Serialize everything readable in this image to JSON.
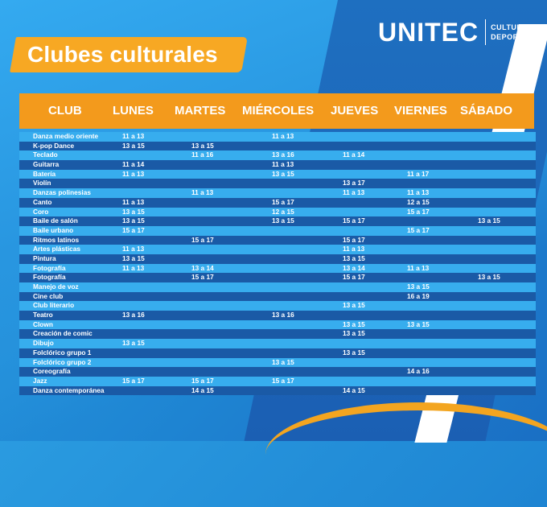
{
  "brand": {
    "name": "UNITEC",
    "tagline_line1": "CULTURA Y",
    "tagline_line2": "DEPORTES"
  },
  "title": "Clubes culturales",
  "table": {
    "headers": [
      "CLUB",
      "LUNES",
      "MARTES",
      "MIÉRCOLES",
      "JUEVES",
      "VIERNES",
      "SÁBADO"
    ],
    "rows": [
      {
        "club": "Danza medio oriente",
        "lunes": "11 a 13",
        "martes": "",
        "miercoles": "11 a 13",
        "jueves": "",
        "viernes": "",
        "sabado": ""
      },
      {
        "club": "K-pop Dance",
        "lunes": "13 a 15",
        "martes": "13 a 15",
        "miercoles": "",
        "jueves": "",
        "viernes": "",
        "sabado": ""
      },
      {
        "club": "Teclado",
        "lunes": "",
        "martes": "11 a 16",
        "miercoles": "13 a 16",
        "jueves": "11 a 14",
        "viernes": "",
        "sabado": ""
      },
      {
        "club": "Guitarra",
        "lunes": "11 a 14",
        "martes": "",
        "miercoles": "11 a 13",
        "jueves": "",
        "viernes": "",
        "sabado": ""
      },
      {
        "club": "Batería",
        "lunes": "11 a 13",
        "martes": "",
        "miercoles": "13 a 15",
        "jueves": "",
        "viernes": "11 a 17",
        "sabado": ""
      },
      {
        "club": "Violín",
        "lunes": "",
        "martes": "",
        "miercoles": "",
        "jueves": "13 a 17",
        "viernes": "",
        "sabado": ""
      },
      {
        "club": "Danzas polinesias",
        "lunes": "",
        "martes": "11 a 13",
        "miercoles": "",
        "jueves": "11 a 13",
        "viernes": "11 a 13",
        "sabado": ""
      },
      {
        "club": "Canto",
        "lunes": "11 a 13",
        "martes": "",
        "miercoles": "15 a 17",
        "jueves": "",
        "viernes": "12 a 15",
        "sabado": ""
      },
      {
        "club": "Coro",
        "lunes": "13 a 15",
        "martes": "",
        "miercoles": "12 a 15",
        "jueves": "",
        "viernes": "15 a 17",
        "sabado": ""
      },
      {
        "club": "Baile de salón",
        "lunes": "13 a 15",
        "martes": "",
        "miercoles": "13 a 15",
        "jueves": "15 a 17",
        "viernes": "",
        "sabado": "13 a 15"
      },
      {
        "club": "Baile urbano",
        "lunes": "15 a 17",
        "martes": "",
        "miercoles": "",
        "jueves": "",
        "viernes": "15 a 17",
        "sabado": ""
      },
      {
        "club": "Ritmos latinos",
        "lunes": "",
        "martes": "15 a 17",
        "miercoles": "",
        "jueves": "15 a 17",
        "viernes": "",
        "sabado": ""
      },
      {
        "club": "Artes plásticas",
        "lunes": "11 a 13",
        "martes": "",
        "miercoles": "",
        "jueves": "11 a 13",
        "viernes": "",
        "sabado": ""
      },
      {
        "club": "Pintura",
        "lunes": "13 a 15",
        "martes": "",
        "miercoles": "",
        "jueves": "13 a 15",
        "viernes": "",
        "sabado": ""
      },
      {
        "club": "Fotografía",
        "lunes": "11 a 13",
        "martes": "13 a 14",
        "miercoles": "",
        "jueves": "13 a 14",
        "viernes": "11 a 13",
        "sabado": ""
      },
      {
        "club": "Fotografía",
        "lunes": "",
        "martes": "15 a 17",
        "miercoles": "",
        "jueves": "15 a 17",
        "viernes": "",
        "sabado": "13 a 15"
      },
      {
        "club": "Manejo de voz",
        "lunes": "",
        "martes": "",
        "miercoles": "",
        "jueves": "",
        "viernes": "13 a 15",
        "sabado": ""
      },
      {
        "club": "Cine club",
        "lunes": "",
        "martes": "",
        "miercoles": "",
        "jueves": "",
        "viernes": "16 a 19",
        "sabado": ""
      },
      {
        "club": "Club literario",
        "lunes": "",
        "martes": "",
        "miercoles": "",
        "jueves": "13 a 15",
        "viernes": "",
        "sabado": ""
      },
      {
        "club": "Teatro",
        "lunes": "13 a 16",
        "martes": "",
        "miercoles": "13 a 16",
        "jueves": "",
        "viernes": "",
        "sabado": ""
      },
      {
        "club": "Clown",
        "lunes": "",
        "martes": "",
        "miercoles": "",
        "jueves": "13 a 15",
        "viernes": "13 a 15",
        "sabado": ""
      },
      {
        "club": "Creación de comic",
        "lunes": "",
        "martes": "",
        "miercoles": "",
        "jueves": "13 a 15",
        "viernes": "",
        "sabado": ""
      },
      {
        "club": "Dibujo",
        "lunes": "13 a 15",
        "martes": "",
        "miercoles": "",
        "jueves": "",
        "viernes": "",
        "sabado": ""
      },
      {
        "club": "Folclórico grupo 1",
        "lunes": "",
        "martes": "",
        "miercoles": "",
        "jueves": "13 a 15",
        "viernes": "",
        "sabado": ""
      },
      {
        "club": "Folclórico grupo 2",
        "lunes": "",
        "martes": "",
        "miercoles": "13 a 15",
        "jueves": "",
        "viernes": "",
        "sabado": ""
      },
      {
        "club": "Coreografía",
        "lunes": "",
        "martes": "",
        "miercoles": "",
        "jueves": "",
        "viernes": "14 a 16",
        "sabado": ""
      },
      {
        "club": "Jazz",
        "lunes": "15 a 17",
        "martes": "15 a 17",
        "miercoles": "15 a 17",
        "jueves": "",
        "viernes": "",
        "sabado": ""
      },
      {
        "club": "Danza contemporánea",
        "lunes": "",
        "martes": "14 a 15",
        "miercoles": "",
        "jueves": "14 a 15",
        "viernes": "",
        "sabado": ""
      }
    ]
  },
  "colors": {
    "orange": "#f39a1c",
    "row_light": "#37adee",
    "row_dark": "#1a5aa6",
    "background": "#2a9be0"
  }
}
